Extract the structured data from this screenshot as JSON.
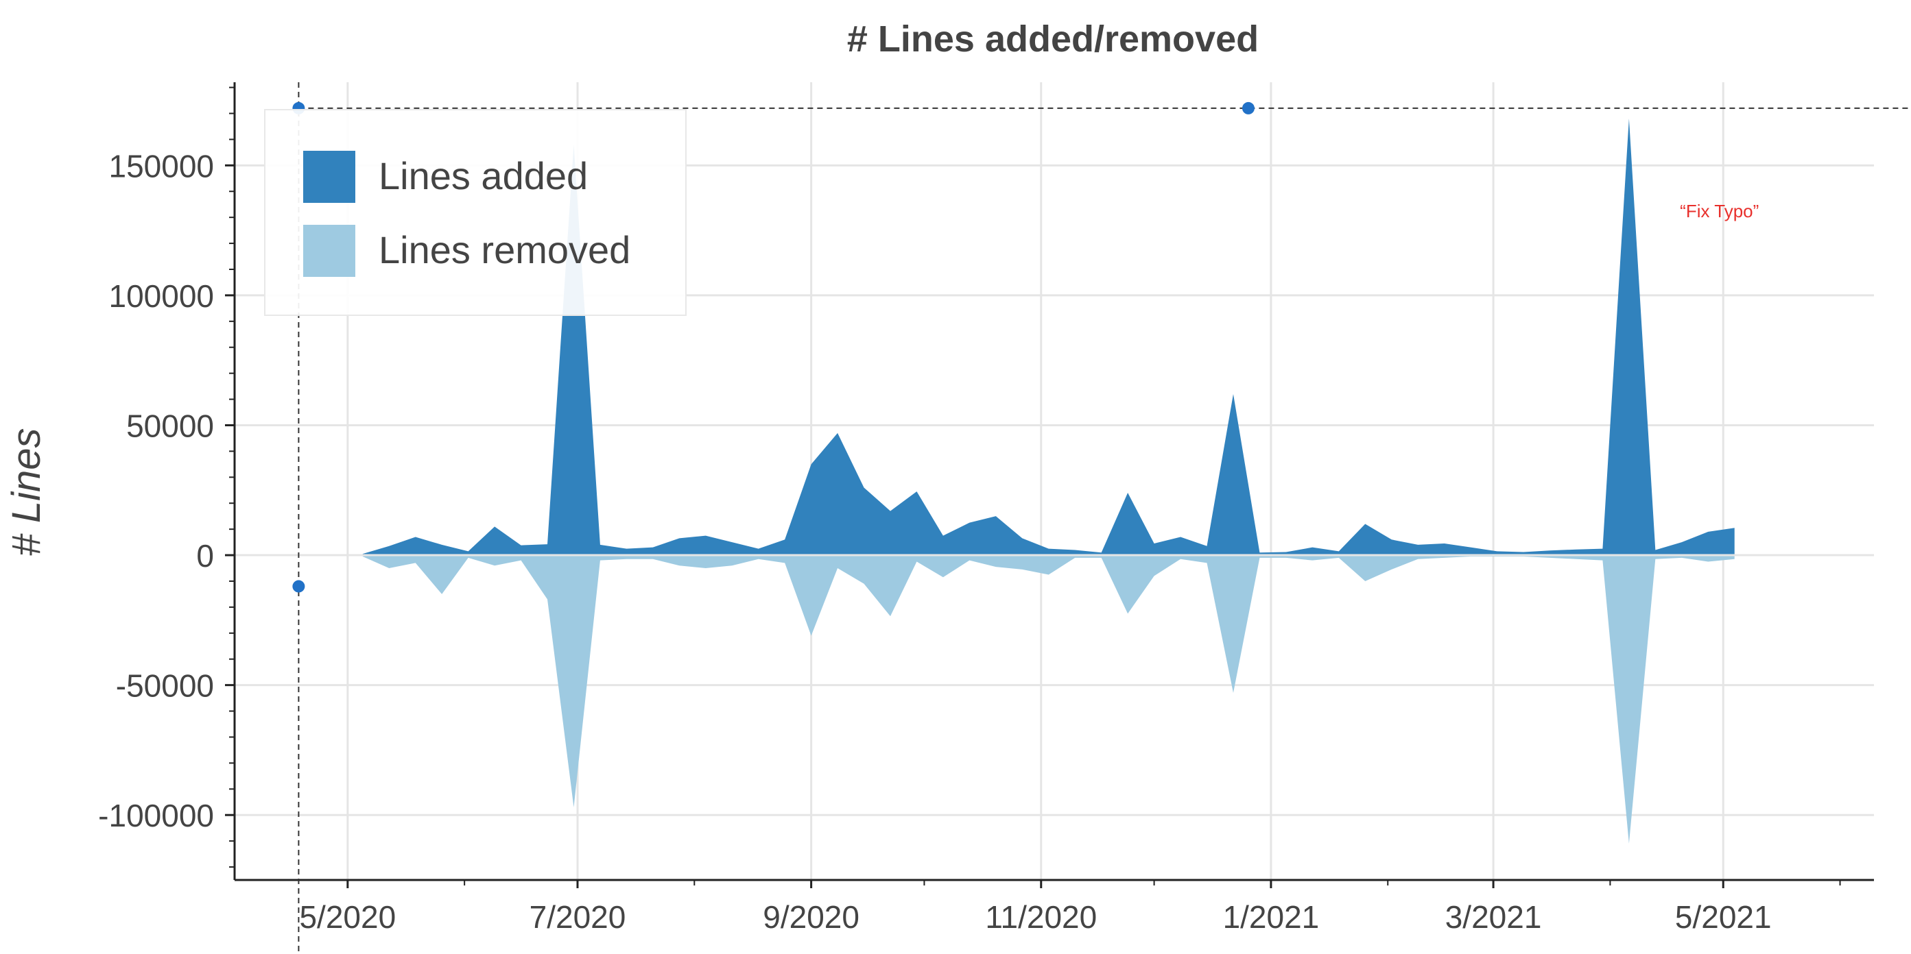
{
  "chart_data": {
    "type": "area",
    "title": "# Lines added/removed",
    "xlabel": "",
    "ylabel": "# Lines",
    "ylim": [
      -125000,
      182000
    ],
    "xlim": [
      "2020-04-01",
      "2021-06-10"
    ],
    "grid": true,
    "legend_position": "top-left",
    "y_ticks": [
      -100000,
      -50000,
      0,
      50000,
      100000,
      150000
    ],
    "y_tick_labels": [
      "-100000",
      "-50000",
      "0",
      "50000",
      "100000",
      "150000"
    ],
    "x_ticks": [
      "2020-05-01",
      "2020-07-01",
      "2020-09-01",
      "2020-11-01",
      "2021-01-01",
      "2021-03-01",
      "2021-05-01"
    ],
    "x_tick_labels": [
      "5/2020",
      "7/2020",
      "9/2020",
      "11/2020",
      "1/2021",
      "3/2021",
      "5/2021"
    ],
    "colors": {
      "added": "#3182bd",
      "removed": "#9ecae1",
      "annotation": "#e8302c",
      "crosshair": "#333333",
      "marker": "#2171c7"
    },
    "dates": [
      "2020-05-05",
      "2020-05-12",
      "2020-05-19",
      "2020-05-26",
      "2020-06-02",
      "2020-06-09",
      "2020-06-16",
      "2020-06-23",
      "2020-06-30",
      "2020-07-07",
      "2020-07-14",
      "2020-07-21",
      "2020-07-28",
      "2020-08-04",
      "2020-08-11",
      "2020-08-18",
      "2020-08-25",
      "2020-09-01",
      "2020-09-08",
      "2020-09-15",
      "2020-09-22",
      "2020-09-29",
      "2020-10-06",
      "2020-10-13",
      "2020-10-20",
      "2020-10-27",
      "2020-11-03",
      "2020-11-10",
      "2020-11-17",
      "2020-11-24",
      "2020-12-01",
      "2020-12-08",
      "2020-12-15",
      "2020-12-22",
      "2020-12-29",
      "2021-01-05",
      "2021-01-12",
      "2021-01-19",
      "2021-01-26",
      "2021-02-02",
      "2021-02-09",
      "2021-02-16",
      "2021-02-23",
      "2021-03-02",
      "2021-03-09",
      "2021-03-16",
      "2021-03-23",
      "2021-03-30",
      "2021-04-06",
      "2021-04-13",
      "2021-04-20",
      "2021-04-27",
      "2021-05-04"
    ],
    "series": [
      {
        "name": "Lines added",
        "values": [
          500,
          3500,
          7000,
          4000,
          1500,
          11000,
          3800,
          4200,
          158000,
          4000,
          2500,
          3000,
          6500,
          7500,
          5000,
          2500,
          6000,
          35000,
          47000,
          26000,
          17000,
          24500,
          7500,
          12500,
          15000,
          6500,
          2500,
          2000,
          1000,
          24000,
          4500,
          7000,
          3500,
          62000,
          1000,
          1200,
          3000,
          1500,
          12000,
          6000,
          4000,
          4500,
          3000,
          1500,
          1200,
          1800,
          2200,
          2500,
          168000,
          2000,
          5000,
          9000,
          10500
        ]
      },
      {
        "name": "Lines removed",
        "values": [
          -500,
          -5000,
          -3000,
          -15000,
          -1000,
          -4000,
          -2000,
          -17000,
          -97000,
          -2000,
          -1500,
          -1500,
          -4000,
          -5000,
          -4000,
          -1500,
          -3000,
          -31000,
          -5000,
          -11000,
          -23500,
          -2500,
          -8500,
          -2000,
          -4500,
          -5500,
          -7500,
          -1000,
          -1000,
          -22500,
          -8000,
          -1500,
          -3000,
          -53000,
          -1000,
          -1000,
          -2000,
          -1000,
          -10000,
          -5500,
          -1500,
          -1000,
          -500,
          -500,
          -500,
          -1000,
          -1500,
          -2000,
          -111000,
          -1500,
          -1000,
          -2500,
          -1500
        ]
      }
    ],
    "annotations": [
      {
        "text": "“Fix Typo”",
        "x": "2021-04-30",
        "y": 130000
      }
    ],
    "crosshair": {
      "x": "2020-04-18",
      "y": 172000
    },
    "markers": [
      {
        "x": "2020-04-18",
        "y": 172000
      },
      {
        "x": "2020-12-26",
        "y": 172000
      },
      {
        "x": "2020-04-18",
        "y": -12000
      }
    ]
  }
}
